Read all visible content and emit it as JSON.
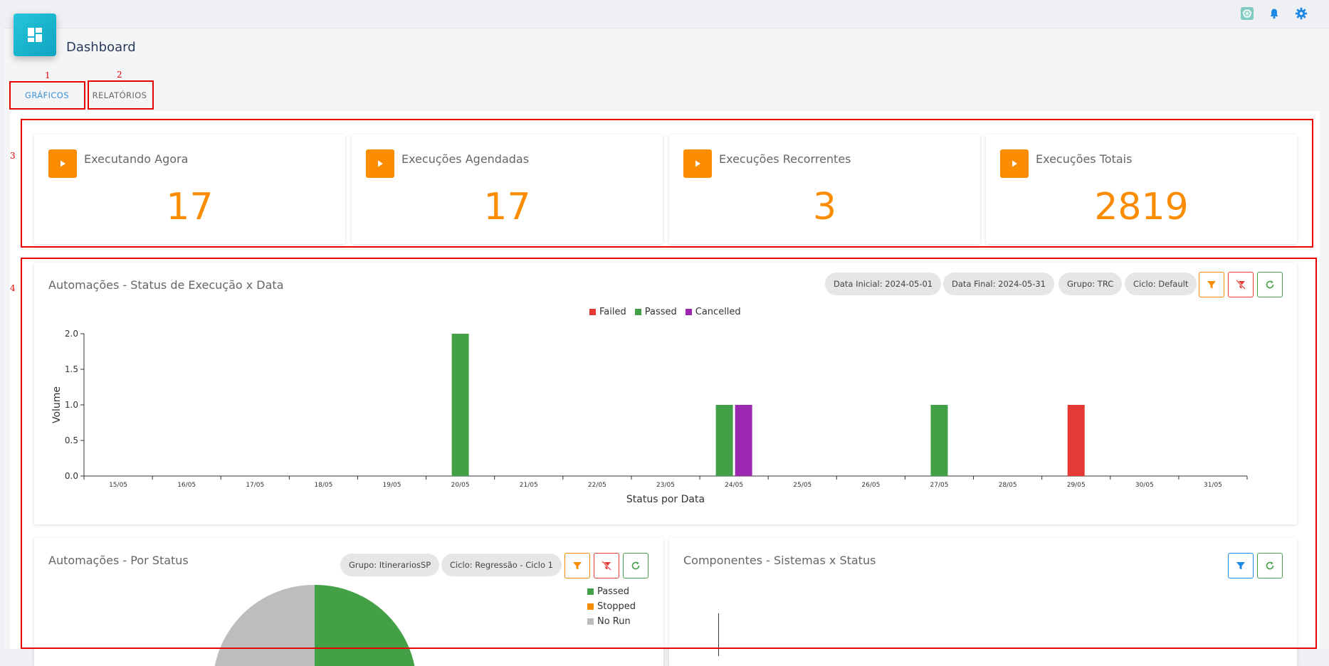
{
  "header": {
    "title": "Dashboard"
  },
  "top_icons": [
    "openai-icon",
    "bell-icon",
    "gear-icon"
  ],
  "tabs": [
    {
      "label": "GRÁFICOS",
      "active": true
    },
    {
      "label": "RELATÓRIOS",
      "active": false
    }
  ],
  "annotations": [
    "1",
    "2",
    "3",
    "4"
  ],
  "stats": [
    {
      "title": "Executando Agora",
      "value": "17"
    },
    {
      "title": "Execuções Agendadas",
      "value": "17"
    },
    {
      "title": "Execuções Recorrentes",
      "value": "3"
    },
    {
      "title": "Execuções Totais",
      "value": "2819"
    }
  ],
  "status_chart": {
    "title": "Automações - Status de Execução x Data",
    "chips": [
      "Data Inicial: 2024-05-01",
      "Data Final: 2024-05-31",
      "Grupo: TRC",
      "Ciclo: Default"
    ]
  },
  "pie_card": {
    "title": "Automações - Por Status",
    "chips": [
      "Grupo: ItinerariosSP",
      "Ciclo: Regressão - Ciclo 1"
    ],
    "legend": [
      {
        "name": "Passed",
        "color": "#43a047"
      },
      {
        "name": "Stopped",
        "color": "#fb8c00"
      },
      {
        "name": "No Run",
        "color": "#bdbdbd"
      }
    ]
  },
  "components_card": {
    "title": "Componentes - Sistemas x Status"
  },
  "colors": {
    "accent": "#fb8c00",
    "failed": "#e53935",
    "passed": "#43a047",
    "cancelled": "#9c27b0"
  },
  "chart_data": {
    "type": "bar",
    "categories": [
      "15/05",
      "16/05",
      "17/05",
      "18/05",
      "19/05",
      "20/05",
      "21/05",
      "22/05",
      "23/05",
      "24/05",
      "25/05",
      "26/05",
      "27/05",
      "28/05",
      "29/05",
      "30/05",
      "31/05"
    ],
    "series": [
      {
        "name": "Failed",
        "color": "#e53935",
        "values": [
          0,
          0,
          0,
          0,
          0,
          0,
          0,
          0,
          0,
          0,
          0,
          0,
          0,
          0,
          1,
          0,
          0
        ]
      },
      {
        "name": "Passed",
        "color": "#43a047",
        "values": [
          0,
          0,
          0,
          0,
          0,
          2,
          0,
          0,
          0,
          1,
          0,
          0,
          1,
          0,
          0,
          0,
          0
        ]
      },
      {
        "name": "Cancelled",
        "color": "#9c27b0",
        "values": [
          0,
          0,
          0,
          0,
          0,
          0,
          0,
          0,
          0,
          1,
          0,
          0,
          0,
          0,
          0,
          0,
          0
        ]
      }
    ],
    "xlabel": "Status por Data",
    "ylabel": "Volume",
    "yticks": [
      "0.0",
      "0.5",
      "1.0",
      "1.5",
      "2.0"
    ],
    "ylim": [
      0,
      2
    ],
    "legend": "top-center"
  }
}
